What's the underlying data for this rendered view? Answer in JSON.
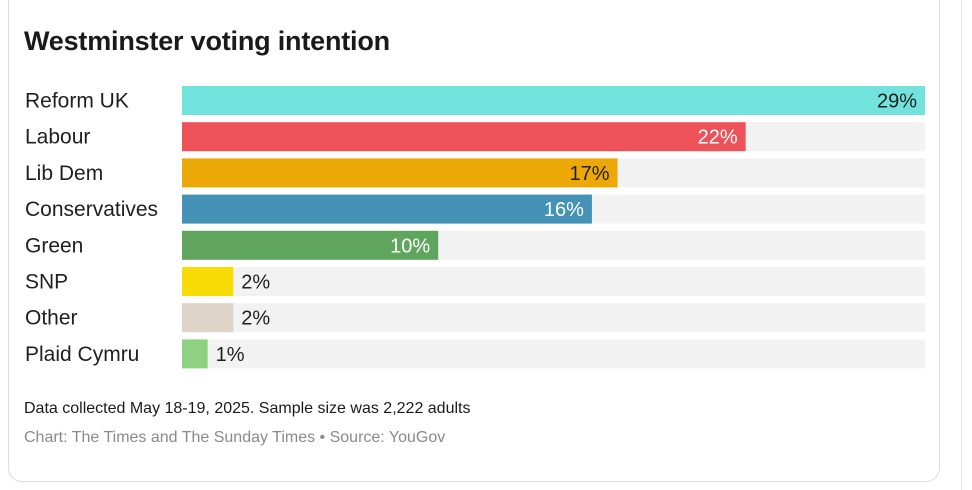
{
  "chart_data": {
    "type": "bar",
    "orientation": "horizontal",
    "title": "Westminster voting intention",
    "categories": [
      "Reform UK",
      "Labour",
      "Lib Dem",
      "Conservatives",
      "Green",
      "SNP",
      "Other",
      "Plaid Cymru"
    ],
    "values": [
      29,
      22,
      17,
      16,
      10,
      2,
      2,
      1
    ],
    "value_labels": [
      "29%",
      "22%",
      "17%",
      "16%",
      "10%",
      "2%",
      "2%",
      "1%"
    ],
    "colors": [
      "#72e3dc",
      "#ee5259",
      "#eca807",
      "#4493b6",
      "#5fa55e",
      "#f7dc06",
      "#ddd3c7",
      "#8ed180"
    ],
    "label_colors": [
      "#1f1f1f",
      "#ffffff",
      "#1f1f1f",
      "#ffffff",
      "#ffffff",
      "#1f1f1f",
      "#1f1f1f",
      "#1f1f1f"
    ],
    "track_color": "#f2f2f2",
    "xlim": [
      0,
      29
    ],
    "grid": false,
    "legend": "none"
  },
  "footer": {
    "note": "Data collected May 18-19, 2025. Sample size was 2,222 adults",
    "source": "Chart: The Times and The Sunday Times • Source: YouGov"
  }
}
